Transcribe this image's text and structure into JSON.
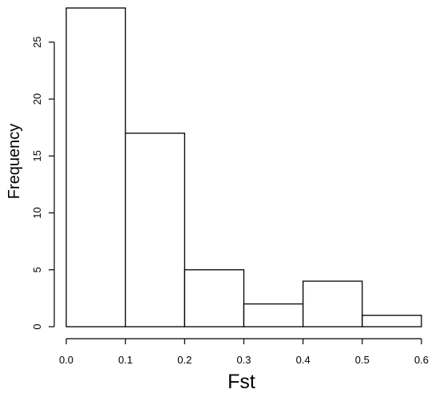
{
  "chart_data": {
    "type": "bar",
    "subtype": "histogram",
    "xlabel": "Fst",
    "ylabel": "Frequency",
    "bins": [
      {
        "start": 0.0,
        "end": 0.1,
        "count": 28
      },
      {
        "start": 0.1,
        "end": 0.2,
        "count": 17
      },
      {
        "start": 0.2,
        "end": 0.3,
        "count": 5
      },
      {
        "start": 0.3,
        "end": 0.4,
        "count": 2
      },
      {
        "start": 0.4,
        "end": 0.5,
        "count": 4
      },
      {
        "start": 0.5,
        "end": 0.6,
        "count": 1
      }
    ],
    "xticks": [
      0.0,
      0.1,
      0.2,
      0.3,
      0.4,
      0.5,
      0.6
    ],
    "xtick_labels": [
      "0.0",
      "0.1",
      "0.2",
      "0.3",
      "0.4",
      "0.5",
      "0.6"
    ],
    "yticks": [
      0,
      5,
      10,
      15,
      20,
      25
    ],
    "ytick_labels": [
      "0",
      "5",
      "10",
      "15",
      "20",
      "25"
    ],
    "xlim": [
      0.0,
      0.6
    ],
    "ylim": [
      0,
      28
    ],
    "grid": false,
    "legend": "none",
    "colors": {
      "bar_fill": "#ffffff",
      "bar_stroke": "#000000",
      "axis": "#000000"
    }
  }
}
